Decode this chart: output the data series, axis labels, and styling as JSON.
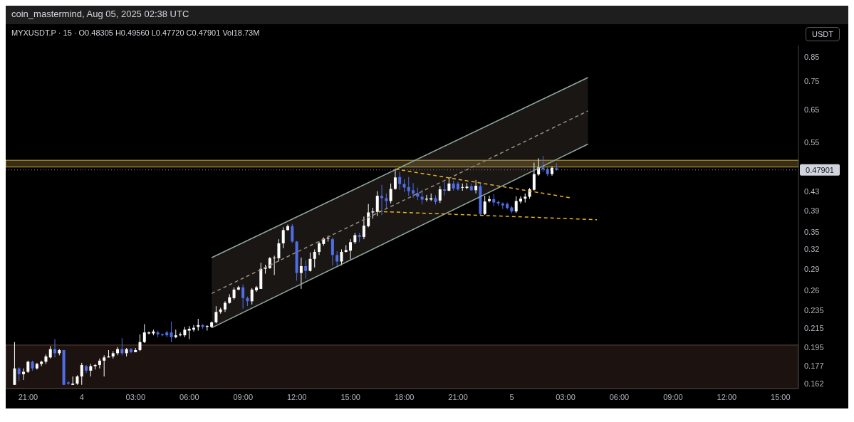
{
  "chart_data": {
    "type": "candlestick",
    "title": "coin_mastermind, Aug 05, 2025 02:38 UTC",
    "subtitle": "MYXUSDT.P · 15 · O0.48305 H0.49560 L0.47720 C0.47901 Vol18.73M",
    "ylabel": "USDT",
    "log": true,
    "ylim": [
      0.158,
      0.9
    ],
    "yticks": [
      0.162,
      0.177,
      0.195,
      0.215,
      0.235,
      0.26,
      0.29,
      0.32,
      0.35,
      0.39,
      0.43,
      0.55,
      0.65,
      0.75,
      0.85
    ],
    "xlim": [
      "2025-08-03T19:45",
      "2025-08-05T16:00"
    ],
    "xticks": [
      {
        "value": "2025-08-03T21:00",
        "label": "21:00"
      },
      {
        "value": "2025-08-04T00:00",
        "label": "4"
      },
      {
        "value": "2025-08-04T03:00",
        "label": "03:00"
      },
      {
        "value": "2025-08-04T06:00",
        "label": "06:00"
      },
      {
        "value": "2025-08-04T09:00",
        "label": "09:00"
      },
      {
        "value": "2025-08-04T12:00",
        "label": "12:00"
      },
      {
        "value": "2025-08-04T15:00",
        "label": "15:00"
      },
      {
        "value": "2025-08-04T18:00",
        "label": "18:00"
      },
      {
        "value": "2025-08-04T21:00",
        "label": "21:00"
      },
      {
        "value": "2025-08-05T00:00",
        "label": "5"
      },
      {
        "value": "2025-08-05T03:00",
        "label": "03:00"
      },
      {
        "value": "2025-08-05T06:00",
        "label": "06:00"
      },
      {
        "value": "2025-08-05T09:00",
        "label": "09:00"
      },
      {
        "value": "2025-08-05T12:00",
        "label": "12:00"
      },
      {
        "value": "2025-08-05T15:00",
        "label": "15:00"
      }
    ],
    "x": [
      "2025-08-03T20:15",
      "2025-08-03T20:30",
      "2025-08-03T20:45",
      "2025-08-03T21:00",
      "2025-08-03T21:15",
      "2025-08-03T21:30",
      "2025-08-03T21:45",
      "2025-08-03T22:00",
      "2025-08-03T22:15",
      "2025-08-03T22:30",
      "2025-08-03T22:45",
      "2025-08-03T23:00",
      "2025-08-03T23:15",
      "2025-08-03T23:30",
      "2025-08-03T23:45",
      "2025-08-04T00:00",
      "2025-08-04T00:15",
      "2025-08-04T00:30",
      "2025-08-04T00:45",
      "2025-08-04T01:00",
      "2025-08-04T01:15",
      "2025-08-04T01:30",
      "2025-08-04T01:45",
      "2025-08-04T02:00",
      "2025-08-04T02:15",
      "2025-08-04T02:30",
      "2025-08-04T02:45",
      "2025-08-04T03:00",
      "2025-08-04T03:15",
      "2025-08-04T03:30",
      "2025-08-04T03:45",
      "2025-08-04T04:00",
      "2025-08-04T04:15",
      "2025-08-04T04:30",
      "2025-08-04T04:45",
      "2025-08-04T05:00",
      "2025-08-04T05:15",
      "2025-08-04T05:30",
      "2025-08-04T05:45",
      "2025-08-04T06:00",
      "2025-08-04T06:15",
      "2025-08-04T06:30",
      "2025-08-04T06:45",
      "2025-08-04T07:00",
      "2025-08-04T07:15",
      "2025-08-04T07:30",
      "2025-08-04T07:45",
      "2025-08-04T08:00",
      "2025-08-04T08:15",
      "2025-08-04T08:30",
      "2025-08-04T08:45",
      "2025-08-04T09:00",
      "2025-08-04T09:15",
      "2025-08-04T09:30",
      "2025-08-04T09:45",
      "2025-08-04T10:00",
      "2025-08-04T10:15",
      "2025-08-04T10:30",
      "2025-08-04T10:45",
      "2025-08-04T11:00",
      "2025-08-04T11:15",
      "2025-08-04T11:30",
      "2025-08-04T11:45",
      "2025-08-04T12:00",
      "2025-08-04T12:15",
      "2025-08-04T12:30",
      "2025-08-04T12:45",
      "2025-08-04T13:00",
      "2025-08-04T13:15",
      "2025-08-04T13:30",
      "2025-08-04T13:45",
      "2025-08-04T14:00",
      "2025-08-04T14:15",
      "2025-08-04T14:30",
      "2025-08-04T14:45",
      "2025-08-04T15:00",
      "2025-08-04T15:15",
      "2025-08-04T15:30",
      "2025-08-04T15:45",
      "2025-08-04T16:00",
      "2025-08-04T16:15",
      "2025-08-04T16:30",
      "2025-08-04T16:45",
      "2025-08-04T17:00",
      "2025-08-04T17:15",
      "2025-08-04T17:30",
      "2025-08-04T17:45",
      "2025-08-04T18:00",
      "2025-08-04T18:15",
      "2025-08-04T18:30",
      "2025-08-04T18:45",
      "2025-08-04T19:00",
      "2025-08-04T19:15",
      "2025-08-04T19:30",
      "2025-08-04T19:45",
      "2025-08-04T20:00",
      "2025-08-04T20:15",
      "2025-08-04T20:30",
      "2025-08-04T20:45",
      "2025-08-04T21:00",
      "2025-08-04T21:15",
      "2025-08-04T21:30",
      "2025-08-04T21:45",
      "2025-08-04T22:00",
      "2025-08-04T22:15",
      "2025-08-04T22:30",
      "2025-08-04T22:45",
      "2025-08-04T23:00",
      "2025-08-04T23:15",
      "2025-08-04T23:30",
      "2025-08-04T23:45",
      "2025-08-05T00:00",
      "2025-08-05T00:15",
      "2025-08-05T00:30",
      "2025-08-05T00:45",
      "2025-08-05T01:00",
      "2025-08-05T01:15",
      "2025-08-05T01:30",
      "2025-08-05T01:45",
      "2025-08-05T02:00",
      "2025-08-05T02:15",
      "2025-08-05T02:30"
    ],
    "ohlc": [
      [
        0.161,
        0.2,
        0.161,
        0.175
      ],
      [
        0.175,
        0.176,
        0.164,
        0.17
      ],
      [
        0.17,
        0.175,
        0.165,
        0.172
      ],
      [
        0.172,
        0.182,
        0.171,
        0.181
      ],
      [
        0.181,
        0.182,
        0.173,
        0.175
      ],
      [
        0.175,
        0.18,
        0.174,
        0.179
      ],
      [
        0.179,
        0.182,
        0.177,
        0.181
      ],
      [
        0.181,
        0.188,
        0.179,
        0.186
      ],
      [
        0.185,
        0.196,
        0.184,
        0.193
      ],
      [
        0.193,
        0.203,
        0.185,
        0.189
      ],
      [
        0.189,
        0.193,
        0.187,
        0.192
      ],
      [
        0.192,
        0.192,
        0.161,
        0.161
      ],
      [
        0.163,
        0.164,
        0.161,
        0.162
      ],
      [
        0.161,
        0.168,
        0.161,
        0.162
      ],
      [
        0.162,
        0.169,
        0.161,
        0.168
      ],
      [
        0.168,
        0.18,
        0.161,
        0.178
      ],
      [
        0.177,
        0.178,
        0.171,
        0.173
      ],
      [
        0.173,
        0.179,
        0.168,
        0.177
      ],
      [
        0.177,
        0.179,
        0.174,
        0.178
      ],
      [
        0.178,
        0.184,
        0.175,
        0.182
      ],
      [
        0.182,
        0.187,
        0.168,
        0.185
      ],
      [
        0.185,
        0.192,
        0.185,
        0.186
      ],
      [
        0.186,
        0.191,
        0.184,
        0.189
      ],
      [
        0.189,
        0.195,
        0.187,
        0.193
      ],
      [
        0.193,
        0.204,
        0.187,
        0.189
      ],
      [
        0.189,
        0.194,
        0.186,
        0.193
      ],
      [
        0.193,
        0.194,
        0.189,
        0.19
      ],
      [
        0.19,
        0.194,
        0.19,
        0.192
      ],
      [
        0.192,
        0.208,
        0.191,
        0.2
      ],
      [
        0.2,
        0.219,
        0.199,
        0.21
      ],
      [
        0.209,
        0.211,
        0.208,
        0.21
      ],
      [
        0.209,
        0.213,
        0.207,
        0.211
      ],
      [
        0.21,
        0.212,
        0.205,
        0.208
      ],
      [
        0.208,
        0.209,
        0.206,
        0.207
      ],
      [
        0.21,
        0.212,
        0.205,
        0.207
      ],
      [
        0.21,
        0.222,
        0.2,
        0.205
      ],
      [
        0.205,
        0.213,
        0.204,
        0.207
      ],
      [
        0.207,
        0.21,
        0.206,
        0.208
      ],
      [
        0.207,
        0.216,
        0.205,
        0.213
      ],
      [
        0.212,
        0.217,
        0.203,
        0.214
      ],
      [
        0.213,
        0.218,
        0.211,
        0.215
      ],
      [
        0.216,
        0.225,
        0.212,
        0.218
      ],
      [
        0.218,
        0.219,
        0.214,
        0.216
      ],
      [
        0.216,
        0.218,
        0.212,
        0.217
      ],
      [
        0.216,
        0.222,
        0.215,
        0.221
      ],
      [
        0.221,
        0.24,
        0.22,
        0.233
      ],
      [
        0.233,
        0.238,
        0.231,
        0.236
      ],
      [
        0.236,
        0.246,
        0.233,
        0.244
      ],
      [
        0.244,
        0.255,
        0.243,
        0.251
      ],
      [
        0.25,
        0.264,
        0.248,
        0.261
      ],
      [
        0.261,
        0.266,
        0.26,
        0.264
      ],
      [
        0.264,
        0.268,
        0.237,
        0.25
      ],
      [
        0.25,
        0.252,
        0.24,
        0.246
      ],
      [
        0.246,
        0.263,
        0.242,
        0.261
      ],
      [
        0.26,
        0.266,
        0.258,
        0.264
      ],
      [
        0.262,
        0.299,
        0.262,
        0.29
      ],
      [
        0.29,
        0.296,
        0.283,
        0.292
      ],
      [
        0.291,
        0.308,
        0.29,
        0.306
      ],
      [
        0.306,
        0.31,
        0.281,
        0.307
      ],
      [
        0.306,
        0.337,
        0.301,
        0.33
      ],
      [
        0.33,
        0.358,
        0.322,
        0.353
      ],
      [
        0.353,
        0.363,
        0.352,
        0.36
      ],
      [
        0.36,
        0.364,
        0.331,
        0.333
      ],
      [
        0.333,
        0.334,
        0.273,
        0.284
      ],
      [
        0.284,
        0.307,
        0.262,
        0.294
      ],
      [
        0.294,
        0.303,
        0.276,
        0.287
      ],
      [
        0.287,
        0.315,
        0.286,
        0.305
      ],
      [
        0.305,
        0.32,
        0.292,
        0.316
      ],
      [
        0.316,
        0.333,
        0.311,
        0.33
      ],
      [
        0.329,
        0.34,
        0.326,
        0.338
      ],
      [
        0.338,
        0.343,
        0.333,
        0.339
      ],
      [
        0.337,
        0.34,
        0.295,
        0.311
      ],
      [
        0.311,
        0.317,
        0.295,
        0.301
      ],
      [
        0.301,
        0.32,
        0.295,
        0.316
      ],
      [
        0.316,
        0.327,
        0.315,
        0.319
      ],
      [
        0.318,
        0.337,
        0.304,
        0.332
      ],
      [
        0.332,
        0.348,
        0.329,
        0.344
      ],
      [
        0.344,
        0.348,
        0.332,
        0.341
      ],
      [
        0.341,
        0.378,
        0.337,
        0.361
      ],
      [
        0.36,
        0.403,
        0.358,
        0.386
      ],
      [
        0.386,
        0.395,
        0.374,
        0.388
      ],
      [
        0.387,
        0.43,
        0.379,
        0.42
      ],
      [
        0.42,
        0.444,
        0.381,
        0.415
      ],
      [
        0.415,
        0.425,
        0.393,
        0.409
      ],
      [
        0.409,
        0.447,
        0.404,
        0.435
      ],
      [
        0.435,
        0.482,
        0.433,
        0.461
      ],
      [
        0.462,
        0.474,
        0.433,
        0.446
      ],
      [
        0.446,
        0.457,
        0.428,
        0.438
      ],
      [
        0.439,
        0.462,
        0.42,
        0.43
      ],
      [
        0.432,
        0.448,
        0.416,
        0.425
      ],
      [
        0.426,
        0.438,
        0.411,
        0.418
      ],
      [
        0.418,
        0.433,
        0.402,
        0.412
      ],
      [
        0.412,
        0.422,
        0.408,
        0.414
      ],
      [
        0.412,
        0.425,
        0.409,
        0.415
      ],
      [
        0.415,
        0.421,
        0.402,
        0.407
      ],
      [
        0.41,
        0.441,
        0.405,
        0.434
      ],
      [
        0.434,
        0.451,
        0.421,
        0.431
      ],
      [
        0.431,
        0.459,
        0.43,
        0.447
      ],
      [
        0.447,
        0.454,
        0.431,
        0.436
      ],
      [
        0.447,
        0.451,
        0.431,
        0.434
      ],
      [
        0.438,
        0.447,
        0.431,
        0.439
      ],
      [
        0.437,
        0.448,
        0.434,
        0.44
      ],
      [
        0.441,
        0.447,
        0.431,
        0.432
      ],
      [
        0.432,
        0.455,
        0.425,
        0.442
      ],
      [
        0.441,
        0.447,
        0.38,
        0.383
      ],
      [
        0.383,
        0.42,
        0.381,
        0.408
      ],
      [
        0.409,
        0.42,
        0.406,
        0.413
      ],
      [
        0.413,
        0.424,
        0.399,
        0.406
      ],
      [
        0.407,
        0.41,
        0.399,
        0.404
      ],
      [
        0.404,
        0.406,
        0.393,
        0.4
      ],
      [
        0.403,
        0.406,
        0.392,
        0.395
      ],
      [
        0.396,
        0.399,
        0.385,
        0.388
      ],
      [
        0.388,
        0.419,
        0.385,
        0.409
      ],
      [
        0.408,
        0.419,
        0.404,
        0.414
      ],
      [
        0.414,
        0.425,
        0.406,
        0.418
      ],
      [
        0.418,
        0.437,
        0.414,
        0.434
      ],
      [
        0.433,
        0.497,
        0.431,
        0.469
      ],
      [
        0.468,
        0.508,
        0.465,
        0.485
      ],
      [
        0.485,
        0.514,
        0.474,
        0.48
      ],
      [
        0.481,
        0.485,
        0.464,
        0.469
      ],
      [
        0.469,
        0.488,
        0.465,
        0.484
      ],
      [
        0.48305,
        0.4956,
        0.4772,
        0.47901
      ]
    ],
    "series": [
      {
        "type": "line",
        "x": [
          "2025-08-04T07:15",
          "2025-08-05T04:15"
        ],
        "values": [
          0.256,
          0.646
        ],
        "lower": [
          0.215,
          0.546
        ],
        "upper": [
          0.307,
          0.765
        ],
        "color": "#9c8b7a",
        "line_style": "dashed"
      },
      {
        "type": "line",
        "x": [
          "2025-08-04T07:15",
          "2025-08-05T04:15"
        ],
        "values": [
          0.307,
          0.765
        ],
        "color": "#8fa89f",
        "line_style": "solid"
      },
      {
        "type": "line",
        "x": [
          "2025-08-04T07:15",
          "2025-08-05T04:15"
        ],
        "values": [
          0.215,
          0.546
        ],
        "color": "#8fa89f",
        "line_style": "solid"
      },
      {
        "type": "line",
        "x": [
          "2025-08-04T17:30",
          "2025-08-05T03:15"
        ],
        "values": [
          0.481,
          0.416
        ],
        "color": "#e6b422",
        "line_style": "dashed"
      },
      {
        "type": "line",
        "x": [
          "2025-08-04T16:30",
          "2025-08-05T04:45"
        ],
        "values": [
          0.388,
          0.372
        ],
        "color": "#e6b422",
        "line_style": "dashed"
      }
    ],
    "bands": [
      {
        "axis": "y",
        "from": 0.486,
        "to": 0.503,
        "color": "#d9b44a"
      },
      {
        "axis": "y",
        "from": 0.158,
        "to": 0.197,
        "color": "#6e4a40"
      }
    ],
    "ref_lines": [
      {
        "axis": "y",
        "value": 0.47901,
        "label": "0.47901",
        "color": "#8a8f99",
        "line_style": "dotted"
      }
    ]
  }
}
